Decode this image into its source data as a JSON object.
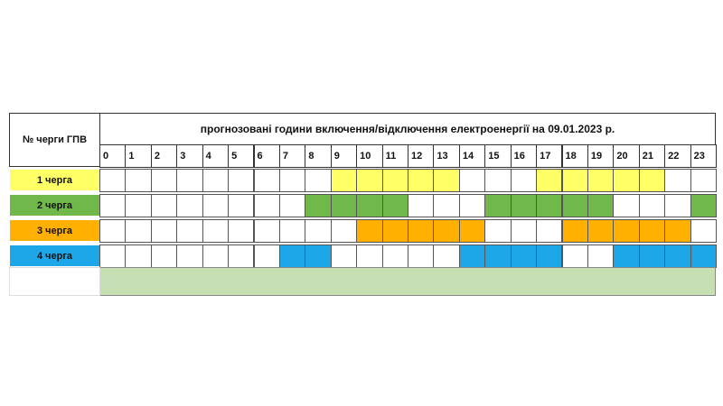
{
  "header": {
    "queue_label": "№ черги ГПВ",
    "title": "прогнозовані години включення/відключення електроенергії на 09.01.2023 р."
  },
  "hours": [
    0,
    1,
    2,
    3,
    4,
    5,
    6,
    7,
    8,
    9,
    10,
    11,
    12,
    13,
    14,
    15,
    16,
    17,
    18,
    19,
    20,
    21,
    22,
    23
  ],
  "rows": [
    {
      "label": "1 черга",
      "color": "#ffff66",
      "off": [
        false,
        false,
        false,
        false,
        false,
        false,
        false,
        false,
        false,
        true,
        true,
        true,
        true,
        true,
        false,
        false,
        false,
        true,
        true,
        true,
        true,
        true,
        false,
        false
      ]
    },
    {
      "label": "2 черга",
      "color": "#70b84a",
      "off": [
        false,
        false,
        false,
        false,
        false,
        false,
        false,
        false,
        true,
        true,
        true,
        true,
        false,
        false,
        false,
        true,
        true,
        true,
        true,
        true,
        false,
        false,
        false,
        true
      ]
    },
    {
      "label": "3 черга",
      "color": "#ffb000",
      "off": [
        false,
        false,
        false,
        false,
        false,
        false,
        false,
        false,
        false,
        false,
        true,
        true,
        true,
        true,
        true,
        false,
        false,
        false,
        true,
        true,
        true,
        true,
        true,
        false
      ]
    },
    {
      "label": "4 черга",
      "color": "#1ea7e8",
      "off": [
        false,
        false,
        false,
        false,
        false,
        false,
        false,
        true,
        true,
        false,
        false,
        false,
        false,
        false,
        true,
        true,
        true,
        true,
        false,
        false,
        true,
        true,
        true,
        true
      ]
    }
  ],
  "footer_color": "#c6e0b4"
}
